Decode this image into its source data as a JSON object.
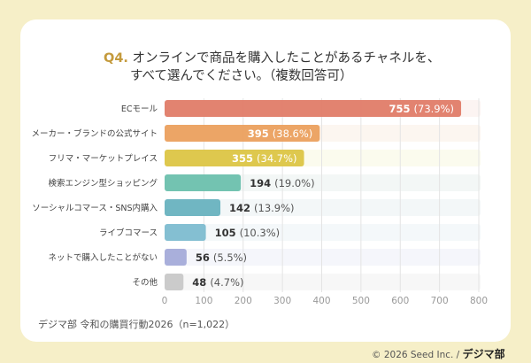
{
  "title": {
    "prefix": "Q4.",
    "line1": "オンラインで商品を購入したことがあるチャネルを、",
    "line2": "すべて選んでください。（複数回答可）"
  },
  "chart_data": {
    "type": "bar",
    "orientation": "horizontal",
    "categories": [
      "ECモール",
      "メーカー・ブランドの公式サイト",
      "フリマ・マーケットプレイス",
      "検索エンジン型ショッピング",
      "ソーシャルコマース・SNS内購入",
      "ライブコマース",
      "ネットで購入したことがない",
      "その他"
    ],
    "values": [
      755,
      395,
      355,
      194,
      142,
      105,
      56,
      48
    ],
    "percent_labels": [
      "(73.9%)",
      "(38.6%)",
      "(34.7%)",
      "(19.0%)",
      "(13.9%)",
      "(10.3%)",
      "(5.5%)",
      "(4.7%)"
    ],
    "colors": [
      "#e07c68",
      "#eba05e",
      "#dcc545",
      "#6cc0ad",
      "#68b2bf",
      "#7dbcd0",
      "#a4abd9",
      "#c8c8c8"
    ],
    "track_colors": [
      "#fcf4f2",
      "#fcf6f0",
      "#fbfbee",
      "#f3f7f6",
      "#f3f7f8",
      "#f4f8fa",
      "#f5f6fb",
      "#f7f7f7"
    ],
    "xlim": [
      0,
      800
    ],
    "xticks": [
      "0",
      "100",
      "200",
      "300",
      "400",
      "500",
      "600",
      "700",
      "800"
    ],
    "grid": true
  },
  "source": "デジマ部 令和の購買行動2026（n=1,022）",
  "footer": {
    "copyright": "© 2026 Seed Inc. /",
    "logo": "デジマ部"
  }
}
